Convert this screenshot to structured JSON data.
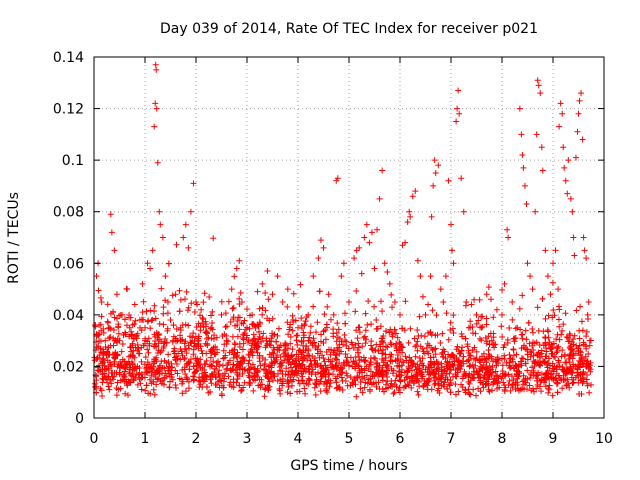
{
  "chart_data": {
    "type": "scatter",
    "title": "Day 039 of 2014, Rate Of TEC Index for receiver p021",
    "xlabel": "GPS time / hours",
    "ylabel": "ROTI / TECUs",
    "xlim": [
      0,
      10
    ],
    "ylim": [
      0,
      0.14
    ],
    "xticks": [
      "0",
      "1",
      "2",
      "3",
      "4",
      "5",
      "6",
      "7",
      "8",
      "9",
      "10"
    ],
    "yticks": [
      "0",
      "0.02",
      "0.04",
      "0.06",
      "0.08",
      "0.1",
      "0.12",
      "0.14"
    ],
    "grid": true,
    "marker": "+",
    "series": [
      {
        "name": "ROTI",
        "color": "#ff0000",
        "points": [
          [
            0.02,
            0.012
          ],
          [
            0.05,
            0.055
          ],
          [
            0.08,
            0.06
          ],
          [
            0.1,
            0.036
          ],
          [
            0.12,
            0.018
          ],
          [
            0.15,
            0.045
          ],
          [
            0.18,
            0.025
          ],
          [
            0.22,
            0.03
          ],
          [
            0.25,
            0.015
          ],
          [
            0.3,
            0.035
          ],
          [
            0.33,
            0.079
          ],
          [
            0.35,
            0.072
          ],
          [
            0.4,
            0.065
          ],
          [
            0.45,
            0.048
          ],
          [
            0.5,
            0.03
          ],
          [
            0.55,
            0.04
          ],
          [
            0.6,
            0.022
          ],
          [
            0.65,
            0.05
          ],
          [
            0.7,
            0.035
          ],
          [
            0.75,
            0.028
          ],
          [
            0.8,
            0.044
          ],
          [
            0.85,
            0.02
          ],
          [
            0.9,
            0.038
          ],
          [
            0.95,
            0.052
          ],
          [
            1.0,
            0.03
          ],
          [
            1.05,
            0.06
          ],
          [
            1.1,
            0.058
          ],
          [
            1.15,
            0.065
          ],
          [
            1.18,
            0.113
          ],
          [
            1.2,
            0.122
          ],
          [
            1.21,
            0.137
          ],
          [
            1.22,
            0.135
          ],
          [
            1.23,
            0.12
          ],
          [
            1.25,
            0.099
          ],
          [
            1.28,
            0.08
          ],
          [
            1.3,
            0.075
          ],
          [
            1.35,
            0.07
          ],
          [
            1.4,
            0.055
          ],
          [
            1.45,
            0.045
          ],
          [
            1.5,
            0.038
          ],
          [
            1.55,
            0.03
          ],
          [
            1.6,
            0.048
          ],
          [
            1.65,
            0.025
          ],
          [
            1.7,
            0.035
          ],
          [
            1.75,
            0.07
          ],
          [
            1.8,
            0.075
          ],
          [
            1.85,
            0.066
          ],
          [
            1.9,
            0.08
          ],
          [
            1.95,
            0.091
          ],
          [
            2.0,
            0.045
          ],
          [
            2.05,
            0.03
          ],
          [
            2.1,
            0.042
          ],
          [
            2.2,
            0.025
          ],
          [
            2.3,
            0.035
          ],
          [
            2.4,
            0.02
          ],
          [
            2.5,
            0.04
          ],
          [
            2.6,
            0.03
          ],
          [
            2.7,
            0.05
          ],
          [
            2.8,
            0.058
          ],
          [
            2.85,
            0.061
          ],
          [
            2.9,
            0.045
          ],
          [
            3.0,
            0.032
          ],
          [
            3.1,
            0.04
          ],
          [
            3.2,
            0.028
          ],
          [
            3.3,
            0.052
          ],
          [
            3.4,
            0.057
          ],
          [
            3.5,
            0.048
          ],
          [
            3.6,
            0.055
          ],
          [
            3.7,
            0.045
          ],
          [
            3.8,
            0.05
          ],
          [
            3.9,
            0.038
          ],
          [
            4.0,
            0.035
          ],
          [
            4.1,
            0.028
          ],
          [
            4.2,
            0.04
          ],
          [
            4.3,
            0.055
          ],
          [
            4.4,
            0.062
          ],
          [
            4.45,
            0.069
          ],
          [
            4.5,
            0.066
          ],
          [
            4.6,
            0.048
          ],
          [
            4.7,
            0.04
          ],
          [
            4.75,
            0.092
          ],
          [
            4.78,
            0.093
          ],
          [
            4.85,
            0.055
          ],
          [
            4.9,
            0.06
          ],
          [
            5.0,
            0.045
          ],
          [
            5.1,
            0.062
          ],
          [
            5.15,
            0.065
          ],
          [
            5.2,
            0.066
          ],
          [
            5.25,
            0.056
          ],
          [
            5.3,
            0.07
          ],
          [
            5.35,
            0.075
          ],
          [
            5.4,
            0.068
          ],
          [
            5.45,
            0.072
          ],
          [
            5.5,
            0.058
          ],
          [
            5.55,
            0.073
          ],
          [
            5.6,
            0.085
          ],
          [
            5.65,
            0.096
          ],
          [
            5.7,
            0.06
          ],
          [
            5.8,
            0.052
          ],
          [
            5.9,
            0.045
          ],
          [
            6.0,
            0.04
          ],
          [
            6.05,
            0.067
          ],
          [
            6.1,
            0.068
          ],
          [
            6.15,
            0.076
          ],
          [
            6.18,
            0.08
          ],
          [
            6.2,
            0.078
          ],
          [
            6.25,
            0.086
          ],
          [
            6.3,
            0.088
          ],
          [
            6.35,
            0.061
          ],
          [
            6.4,
            0.055
          ],
          [
            6.45,
            0.047
          ],
          [
            6.5,
            0.04
          ],
          [
            6.55,
            0.044
          ],
          [
            6.6,
            0.055
          ],
          [
            6.62,
            0.078
          ],
          [
            6.65,
            0.09
          ],
          [
            6.68,
            0.1
          ],
          [
            6.7,
            0.095
          ],
          [
            6.75,
            0.098
          ],
          [
            6.8,
            0.05
          ],
          [
            6.85,
            0.045
          ],
          [
            6.9,
            0.055
          ],
          [
            6.95,
            0.092
          ],
          [
            7.0,
            0.075
          ],
          [
            7.02,
            0.065
          ],
          [
            7.05,
            0.06
          ],
          [
            7.1,
            0.115
          ],
          [
            7.12,
            0.12
          ],
          [
            7.14,
            0.127
          ],
          [
            7.16,
            0.118
          ],
          [
            7.2,
            0.093
          ],
          [
            7.25,
            0.08
          ],
          [
            7.3,
            0.045
          ],
          [
            7.35,
            0.035
          ],
          [
            7.4,
            0.044
          ],
          [
            7.5,
            0.04
          ],
          [
            7.6,
            0.035
          ],
          [
            7.7,
            0.048
          ],
          [
            7.8,
            0.03
          ],
          [
            7.9,
            0.042
          ],
          [
            8.0,
            0.04
          ],
          [
            8.05,
            0.052
          ],
          [
            8.1,
            0.073
          ],
          [
            8.12,
            0.07
          ],
          [
            8.2,
            0.045
          ],
          [
            8.3,
            0.035
          ],
          [
            8.35,
            0.12
          ],
          [
            8.38,
            0.11
          ],
          [
            8.4,
            0.102
          ],
          [
            8.42,
            0.097
          ],
          [
            8.45,
            0.09
          ],
          [
            8.48,
            0.083
          ],
          [
            8.5,
            0.06
          ],
          [
            8.55,
            0.055
          ],
          [
            8.6,
            0.05
          ],
          [
            8.65,
            0.08
          ],
          [
            8.68,
            0.11
          ],
          [
            8.7,
            0.131
          ],
          [
            8.72,
            0.129
          ],
          [
            8.75,
            0.126
          ],
          [
            8.78,
            0.105
          ],
          [
            8.8,
            0.096
          ],
          [
            8.85,
            0.065
          ],
          [
            8.9,
            0.055
          ],
          [
            8.95,
            0.048
          ],
          [
            9.0,
            0.06
          ],
          [
            9.05,
            0.065
          ],
          [
            9.1,
            0.05
          ],
          [
            9.12,
            0.113
          ],
          [
            9.15,
            0.122
          ],
          [
            9.18,
            0.118
          ],
          [
            9.2,
            0.105
          ],
          [
            9.22,
            0.097
          ],
          [
            9.25,
            0.092
          ],
          [
            9.28,
            0.087
          ],
          [
            9.3,
            0.1
          ],
          [
            9.35,
            0.085
          ],
          [
            9.38,
            0.08
          ],
          [
            9.4,
            0.07
          ],
          [
            9.42,
            0.063
          ],
          [
            9.45,
            0.101
          ],
          [
            9.48,
            0.111
          ],
          [
            9.5,
            0.118
          ],
          [
            9.52,
            0.123
          ],
          [
            9.55,
            0.126
          ],
          [
            9.58,
            0.108
          ],
          [
            9.6,
            0.07
          ],
          [
            9.62,
            0.065
          ],
          [
            9.65,
            0.062
          ],
          [
            9.68,
            0.04
          ],
          [
            9.7,
            0.045
          ]
        ]
      }
    ]
  }
}
